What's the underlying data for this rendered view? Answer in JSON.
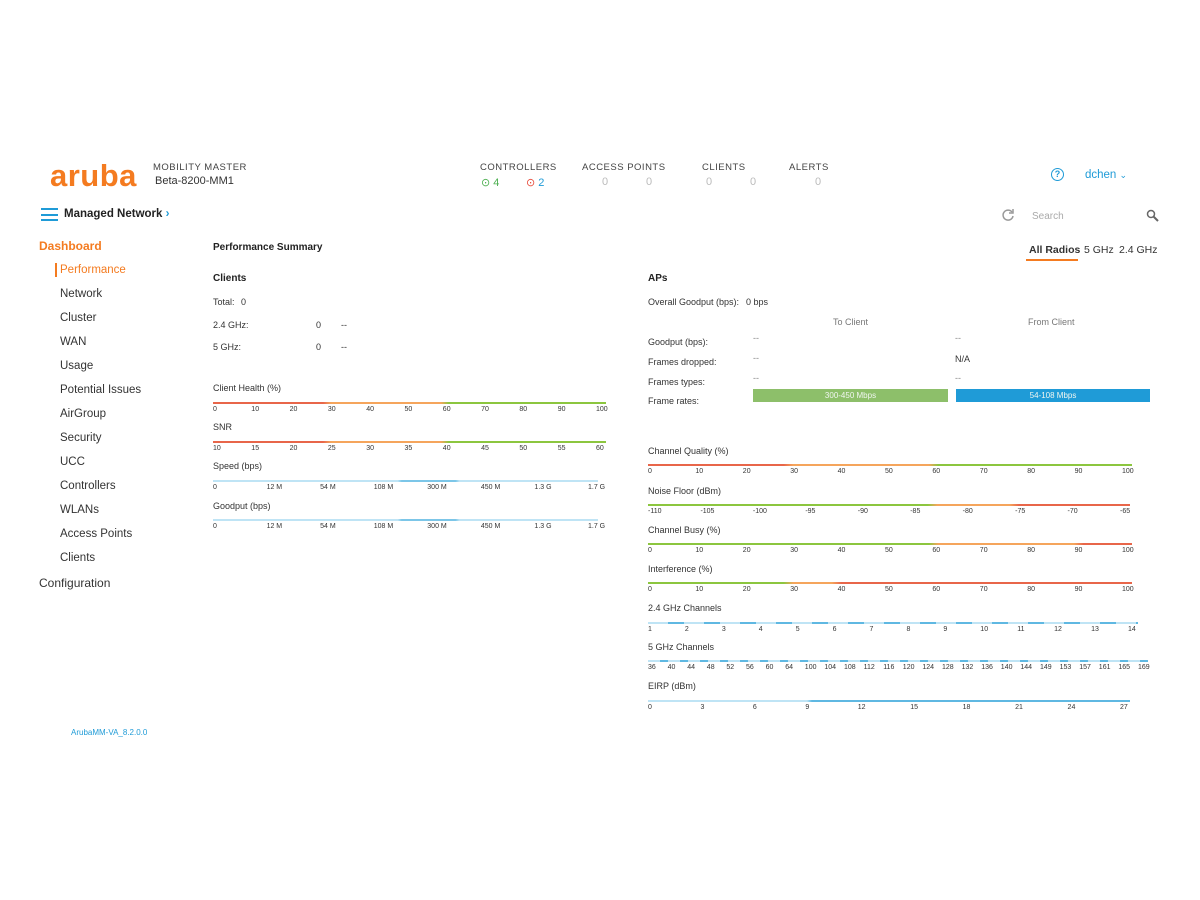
{
  "header": {
    "logo_text": "aruba",
    "mm_label": "MOBILITY MASTER",
    "mm_name": "Beta-8200-MM1",
    "stats": [
      {
        "label": "CONTROLLERS",
        "v1": "4",
        "v2": "2"
      },
      {
        "label": "ACCESS POINTS",
        "v1": "0",
        "v2": "0"
      },
      {
        "label": "CLIENTS",
        "v1": "0",
        "v2": "0"
      },
      {
        "label": "ALERTS",
        "v1": "0"
      }
    ],
    "user": "dchen"
  },
  "nav": {
    "managed_network": "Managed Network",
    "search_placeholder": "Search",
    "dashboard": "Dashboard",
    "items": [
      "Performance",
      "Network",
      "Cluster",
      "WAN",
      "Usage",
      "Potential Issues",
      "AirGroup",
      "Security",
      "UCC",
      "Controllers",
      "WLANs",
      "Access Points",
      "Clients"
    ],
    "configuration": "Configuration",
    "version": "ArubaMM-VA_8.2.0.0"
  },
  "main": {
    "title": "Performance Summary",
    "radio_tabs": [
      "All Radios",
      "5 GHz",
      "2.4 GHz"
    ],
    "selected_tab": "All Radios",
    "clients": {
      "title": "Clients",
      "total_label": "Total:",
      "total_value": "0",
      "rows": [
        {
          "label": "2.4 GHz:",
          "value": "0",
          "extra": "--"
        },
        {
          "label": "5 GHz:",
          "value": "0",
          "extra": "--"
        }
      ]
    },
    "client_scales": [
      {
        "label": "Client Health (%)",
        "ticks": [
          "0",
          "10",
          "20",
          "30",
          "40",
          "50",
          "60",
          "70",
          "80",
          "90",
          "100"
        ]
      },
      {
        "label": "SNR",
        "ticks": [
          "10",
          "15",
          "20",
          "25",
          "30",
          "35",
          "40",
          "45",
          "50",
          "55",
          "60"
        ]
      },
      {
        "label": "Speed (bps)",
        "ticks": [
          "0",
          "12 M",
          "54 M",
          "108 M",
          "300 M",
          "450 M",
          "1.3 G",
          "1.7 G"
        ]
      },
      {
        "label": "Goodput (bps)",
        "ticks": [
          "0",
          "12 M",
          "54 M",
          "108 M",
          "300 M",
          "450 M",
          "1.3 G",
          "1.7 G"
        ]
      }
    ],
    "aps": {
      "title": "APs",
      "overall_label": "Overall Goodput (bps):",
      "overall_value": "0 bps",
      "col_to": "To Client",
      "col_from": "From Client",
      "rows": [
        {
          "label": "Goodput (bps):",
          "to": "--",
          "from": "--"
        },
        {
          "label": "Frames dropped:",
          "to": "--",
          "from": "N/A"
        },
        {
          "label": "Frames types:",
          "to": "--",
          "from": "--"
        },
        {
          "label": "Frame rates:",
          "to": "300-450 Mbps",
          "from": "54-108 Mbps"
        }
      ]
    },
    "ap_scales": [
      {
        "label": "Channel Quality (%)",
        "ticks": [
          "0",
          "10",
          "20",
          "30",
          "40",
          "50",
          "60",
          "70",
          "80",
          "90",
          "100"
        ]
      },
      {
        "label": "Noise Floor (dBm)",
        "ticks": [
          "-110",
          "-105",
          "-100",
          "-95",
          "-90",
          "-85",
          "-80",
          "-75",
          "-70",
          "-65"
        ]
      },
      {
        "label": "Channel Busy (%)",
        "ticks": [
          "0",
          "10",
          "20",
          "30",
          "40",
          "50",
          "60",
          "70",
          "80",
          "90",
          "100"
        ]
      },
      {
        "label": "Interference (%)",
        "ticks": [
          "0",
          "10",
          "20",
          "30",
          "40",
          "50",
          "60",
          "70",
          "80",
          "90",
          "100"
        ]
      },
      {
        "label": "2.4 GHz Channels",
        "ticks": [
          "1",
          "2",
          "3",
          "4",
          "5",
          "6",
          "7",
          "8",
          "9",
          "10",
          "11",
          "12",
          "13",
          "14"
        ]
      },
      {
        "label": "5 GHz Channels",
        "ticks": [
          "36",
          "40",
          "44",
          "48",
          "52",
          "56",
          "60",
          "64",
          "100",
          "104",
          "108",
          "112",
          "116",
          "120",
          "124",
          "128",
          "132",
          "136",
          "140",
          "144",
          "149",
          "153",
          "157",
          "161",
          "165",
          "169"
        ]
      },
      {
        "label": "EIRP (dBm)",
        "ticks": [
          "0",
          "3",
          "6",
          "9",
          "12",
          "15",
          "18",
          "21",
          "24",
          "27"
        ]
      }
    ]
  },
  "colors": {
    "accent": "#f47b20",
    "link": "#1f9bd7",
    "good": "#8cc63f",
    "bad": "#e8664a",
    "mid": "#f5a55c",
    "frame_to": "#8dbf6a",
    "frame_from": "#1f9bd7"
  }
}
